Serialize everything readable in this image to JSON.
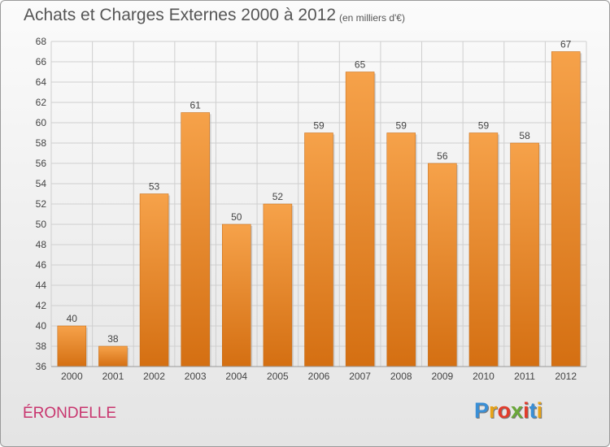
{
  "header": {
    "title": "Achats et Charges Externes 2000 à 2012",
    "subtitle": "(en milliers d'€)"
  },
  "footer": {
    "place_name": "ÉRONDELLE"
  },
  "logo": {
    "letters": [
      "P",
      "r",
      "o",
      "x",
      "i",
      "t",
      "i"
    ],
    "colors": [
      "#3a8fd6",
      "#e8a317",
      "#e23c2c",
      "#6aa839",
      "#e23c2c",
      "#3a8fd6",
      "#e8a317"
    ]
  },
  "colors": {
    "bar_light": "#f6a24a",
    "bar_dark": "#d46f12",
    "grid": "#cfcfcf",
    "axis_text": "#444444",
    "place": "#c8356e"
  },
  "chart_data": {
    "type": "bar",
    "title": "Achats et Charges Externes 2000 à 2012",
    "subtitle": "(en milliers d'€)",
    "xlabel": "",
    "ylabel": "",
    "categories": [
      "2000",
      "2001",
      "2002",
      "2003",
      "2004",
      "2005",
      "2006",
      "2007",
      "2008",
      "2009",
      "2010",
      "2011",
      "2012"
    ],
    "values": [
      40,
      38,
      53,
      61,
      50,
      52,
      59,
      65,
      59,
      56,
      59,
      58,
      67
    ],
    "ylim": [
      36,
      68
    ],
    "yticks": [
      36,
      38,
      40,
      42,
      44,
      46,
      48,
      50,
      52,
      54,
      56,
      58,
      60,
      62,
      64,
      66,
      68
    ],
    "grid": true,
    "legend": "none"
  }
}
